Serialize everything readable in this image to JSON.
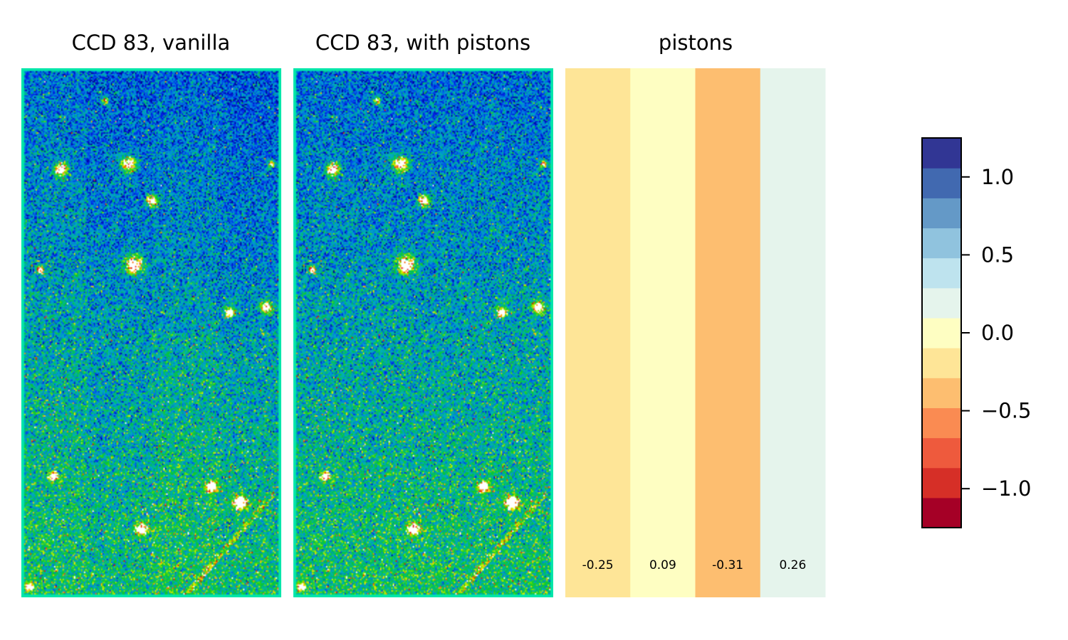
{
  "chart_data": [
    {
      "type": "heatmap",
      "title": "CCD 83, vanilla",
      "colormap": "nipy_spectral-like",
      "features": {
        "stars": [
          [
            0.15,
            0.19,
            12
          ],
          [
            0.41,
            0.18,
            14
          ],
          [
            0.5,
            0.25,
            10
          ],
          [
            0.43,
            0.37,
            16
          ],
          [
            0.94,
            0.45,
            11
          ],
          [
            0.8,
            0.46,
            9
          ],
          [
            0.12,
            0.77,
            8
          ],
          [
            0.73,
            0.79,
            10
          ],
          [
            0.84,
            0.82,
            12
          ],
          [
            0.46,
            0.87,
            11
          ],
          [
            0.03,
            0.98,
            7
          ],
          [
            0.07,
            0.38,
            6
          ],
          [
            0.32,
            0.06,
            6
          ],
          [
            0.96,
            0.18,
            6
          ]
        ],
        "streak": [
          [
            0.97,
            0.8
          ],
          [
            0.62,
            1.0
          ]
        ]
      }
    },
    {
      "type": "heatmap",
      "title": "CCD 83, with pistons",
      "colormap": "nipy_spectral-like",
      "features": {
        "stars": [
          [
            0.15,
            0.19,
            12
          ],
          [
            0.41,
            0.18,
            14
          ],
          [
            0.5,
            0.25,
            10
          ],
          [
            0.43,
            0.37,
            16
          ],
          [
            0.94,
            0.45,
            11
          ],
          [
            0.8,
            0.46,
            9
          ],
          [
            0.12,
            0.77,
            8
          ],
          [
            0.73,
            0.79,
            10
          ],
          [
            0.84,
            0.82,
            12
          ],
          [
            0.46,
            0.87,
            11
          ],
          [
            0.03,
            0.98,
            7
          ],
          [
            0.07,
            0.38,
            6
          ],
          [
            0.32,
            0.06,
            6
          ],
          [
            0.96,
            0.18,
            6
          ]
        ],
        "streak": [
          [
            0.97,
            0.8
          ],
          [
            0.62,
            1.0
          ]
        ]
      }
    },
    {
      "type": "heatmap",
      "title": "pistons",
      "categories": [
        "-0.25",
        "0.09",
        "-0.31",
        "0.26"
      ],
      "values": [
        -0.25,
        0.09,
        -0.31,
        0.26
      ],
      "colors": [
        "#fee597",
        "#fefec2",
        "#fdbe70",
        "#e5f4ec"
      ]
    }
  ],
  "colorbar": {
    "vmin": -1.25,
    "vmax": 1.25,
    "ticks": [
      1.0,
      0.5,
      0.0,
      -0.5,
      -1.0
    ],
    "tick_labels": [
      "1.0",
      "0.5",
      "0.0",
      "−0.5",
      "−1.0"
    ],
    "colors": [
      "#a50026",
      "#d62f27",
      "#ee5a3d",
      "#fa8b52",
      "#fdbe70",
      "#fee597",
      "#fefec2",
      "#e5f4ec",
      "#bee3ee",
      "#90c3de",
      "#6499c7",
      "#4169b0",
      "#313694"
    ]
  }
}
